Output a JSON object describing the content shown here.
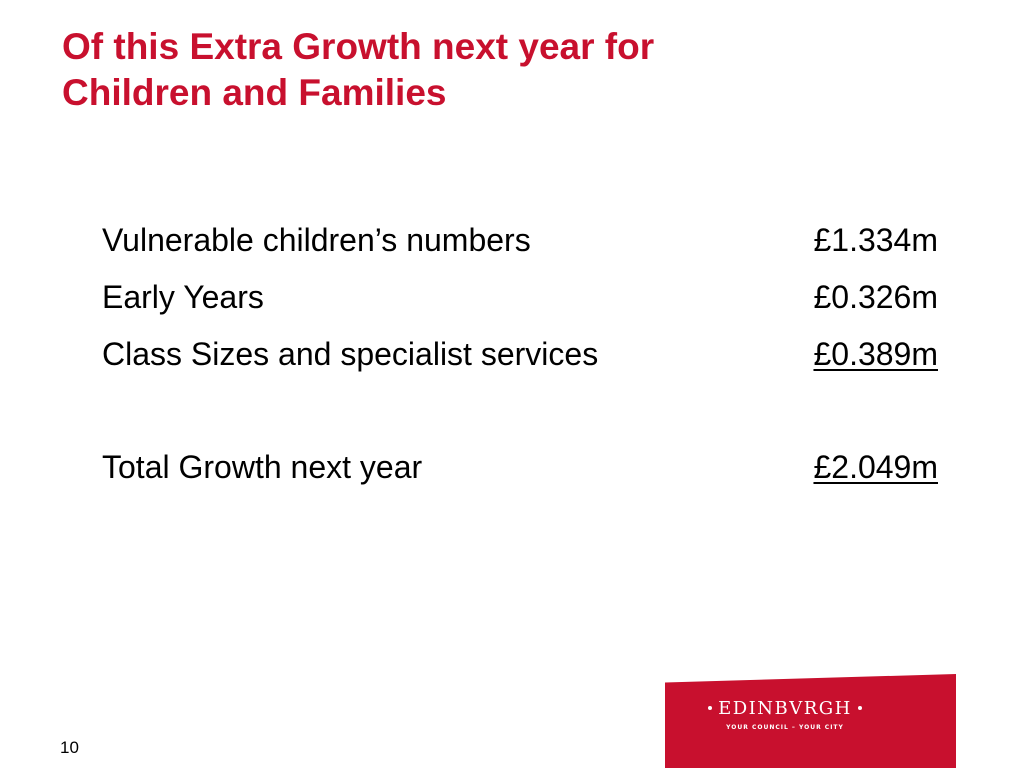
{
  "slide": {
    "title_lines": [
      "Of this Extra Growth next year for",
      "Children and Families"
    ],
    "rows": [
      {
        "label": "Vulnerable children’s numbers",
        "amount": "£1.334m"
      },
      {
        "label": "Early Years",
        "amount": "£0.326m"
      },
      {
        "label": "Class Sizes and specialist services",
        "amount": "£0.389m"
      }
    ],
    "total": {
      "label": "Total Growth next year",
      "amount": "£2.049m"
    },
    "page_number": "10"
  },
  "logo": {
    "wordmark": "EDINBVRGH",
    "tagline": "YOUR COUNCIL – YOUR CITY"
  },
  "colors": {
    "title": "#c8102e",
    "logo_background": "#c8102e",
    "text": "#000000",
    "background": "#ffffff"
  }
}
